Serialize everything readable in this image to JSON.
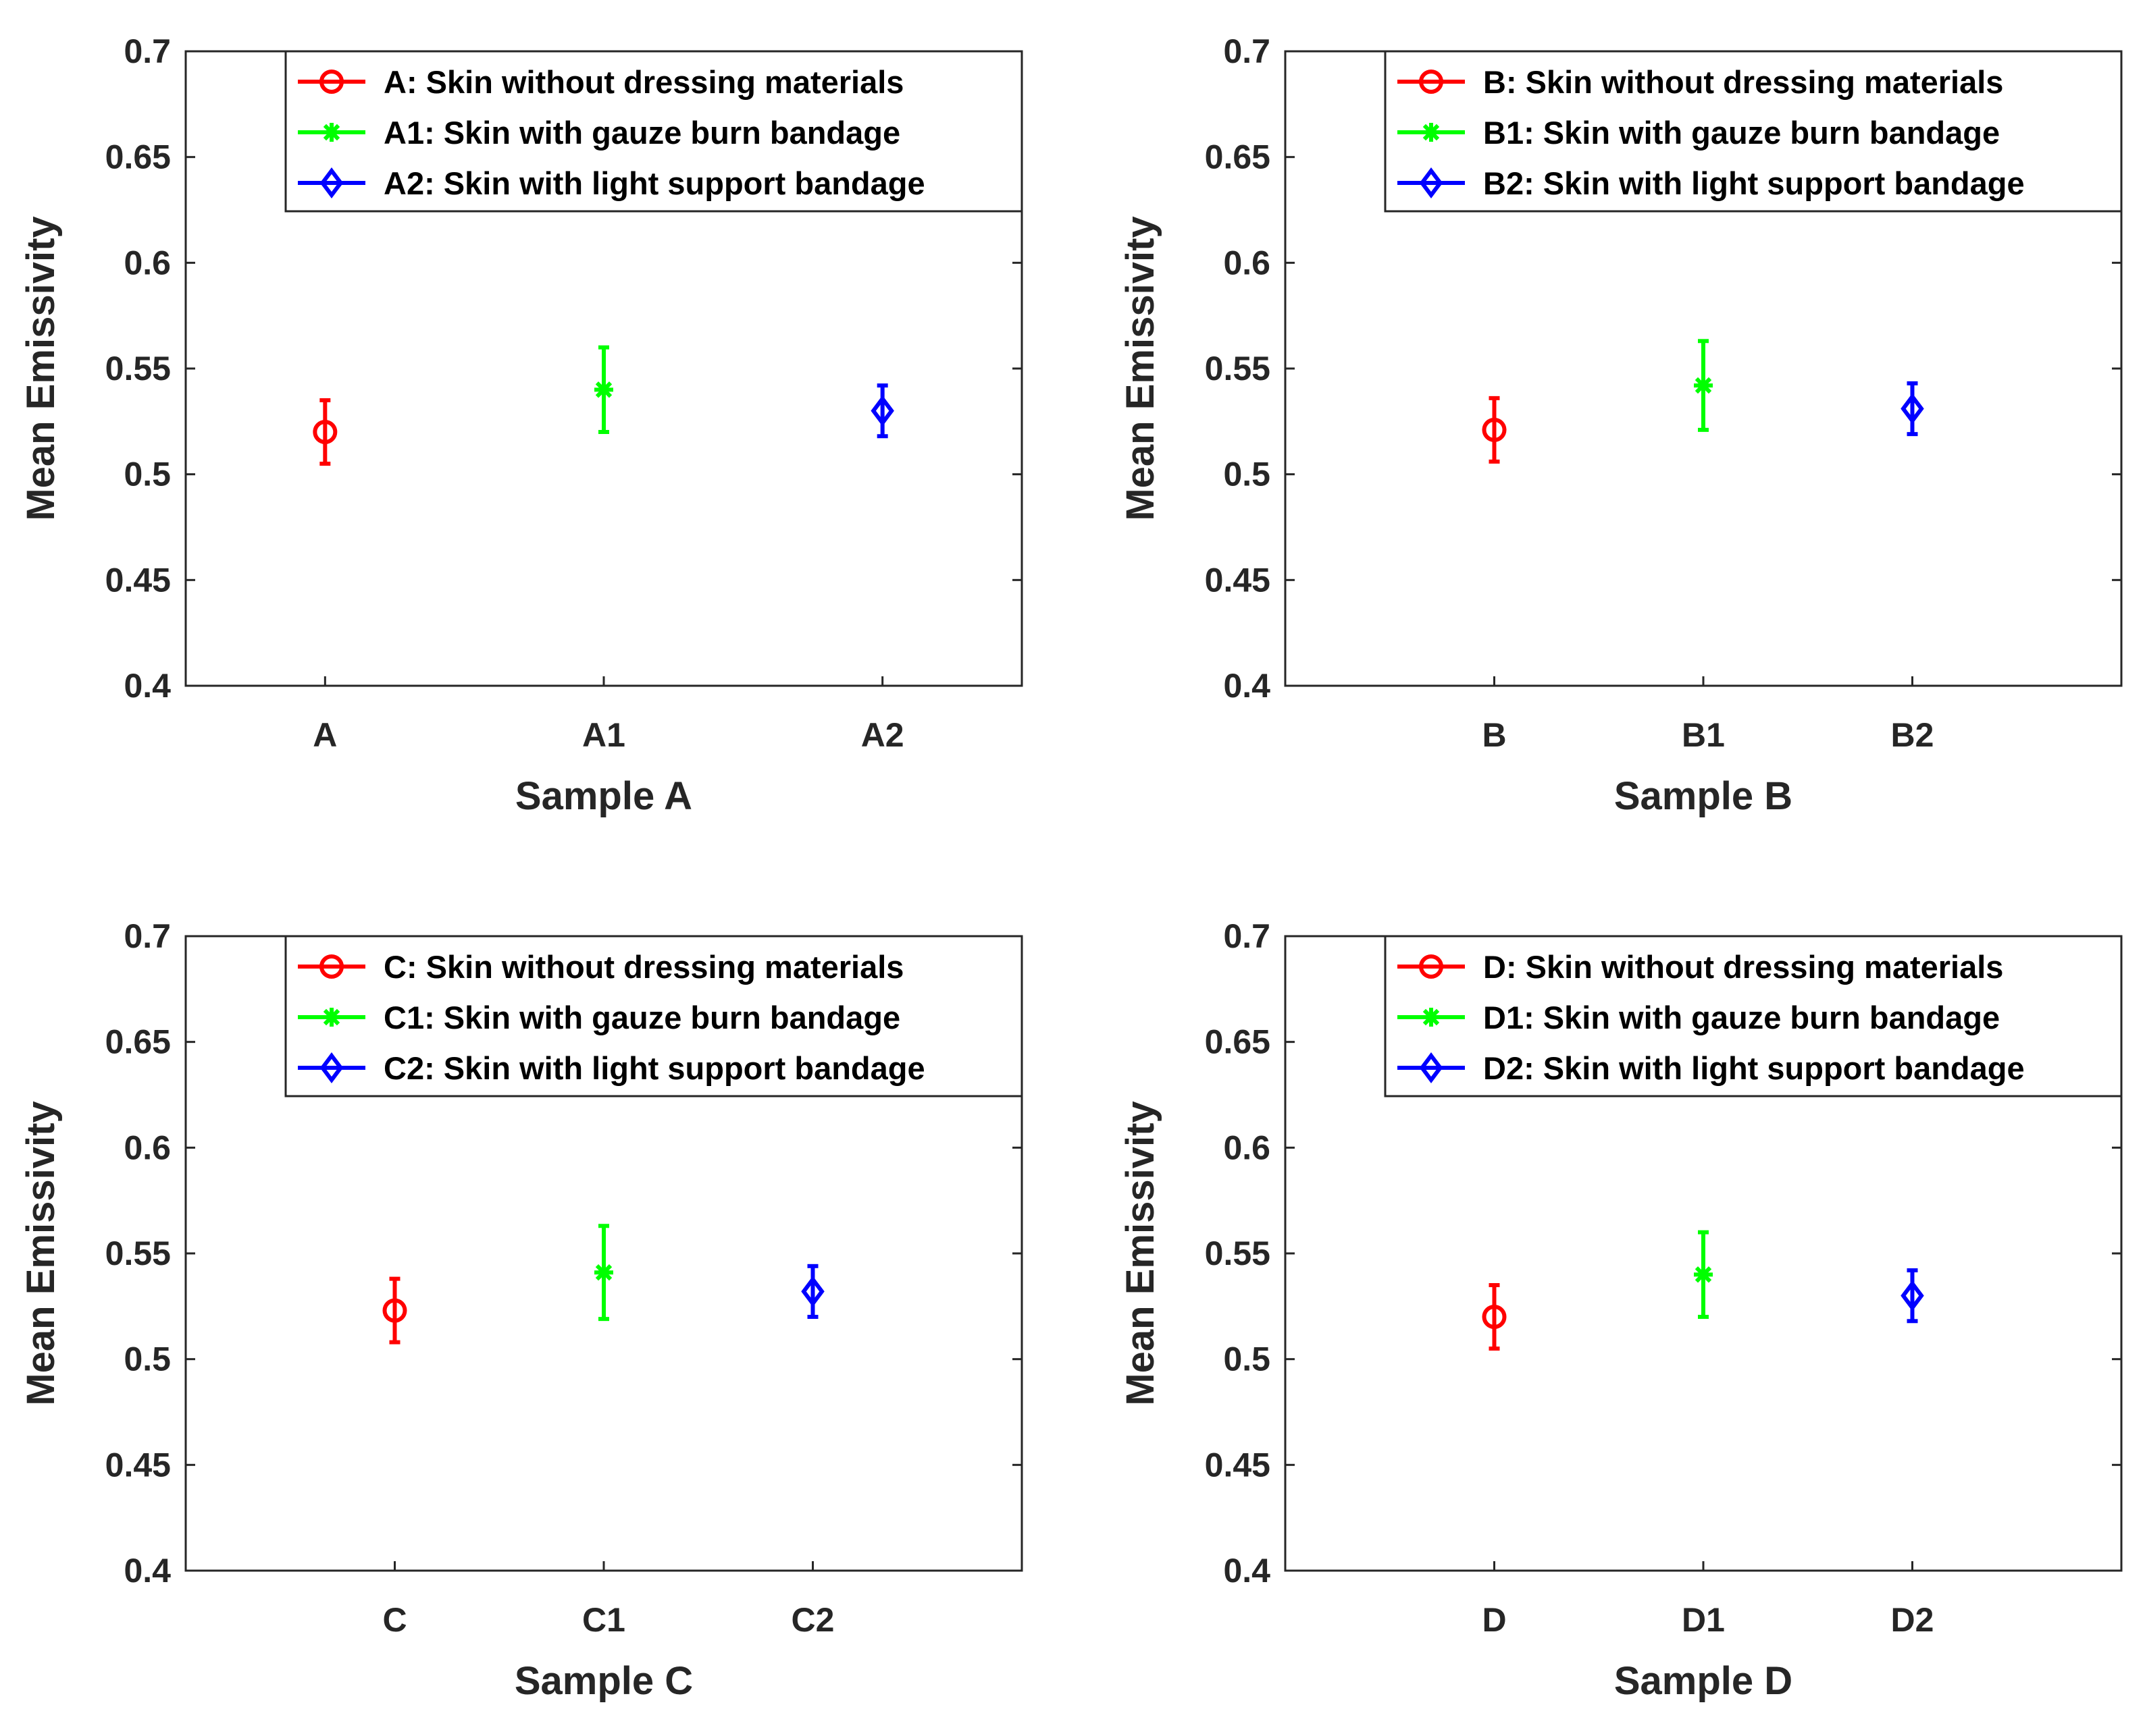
{
  "chart_data": [
    {
      "type": "errorbar",
      "xlabel": "Sample A",
      "ylabel": "Mean Emissivity",
      "ylim": [
        0.4,
        0.7
      ],
      "yticks": [
        0.4,
        0.45,
        0.5,
        0.55,
        0.6,
        0.65,
        0.7
      ],
      "ytick_labels": [
        "0.4",
        "0.45",
        "0.5",
        "0.55",
        "0.6",
        "0.65",
        "0.7"
      ],
      "xlim": [
        0,
        6
      ],
      "grid": false,
      "legend_position": "top-right",
      "points": [
        {
          "category": "A",
          "x": 1,
          "mean": 0.52,
          "lower": 0.505,
          "upper": 0.535,
          "marker": "circle",
          "color": "#ff0000",
          "legend": "A: Skin without dressing materials"
        },
        {
          "category": "A1",
          "x": 3,
          "mean": 0.54,
          "lower": 0.52,
          "upper": 0.56,
          "marker": "asterisk",
          "color": "#00ff00",
          "legend": "A1: Skin with gauze burn bandage"
        },
        {
          "category": "A2",
          "x": 5,
          "mean": 0.53,
          "lower": 0.518,
          "upper": 0.542,
          "marker": "diamond",
          "color": "#0000ff",
          "legend": "A2: Skin with light support bandage"
        }
      ]
    },
    {
      "type": "errorbar",
      "xlabel": "Sample B",
      "ylabel": "Mean Emissivity",
      "ylim": [
        0.4,
        0.7
      ],
      "yticks": [
        0.4,
        0.45,
        0.5,
        0.55,
        0.6,
        0.65,
        0.7
      ],
      "ytick_labels": [
        "0.4",
        "0.45",
        "0.5",
        "0.55",
        "0.6",
        "0.65",
        "0.7"
      ],
      "xlim": [
        0,
        4
      ],
      "grid": false,
      "legend_position": "top-right",
      "points": [
        {
          "category": "B",
          "x": 1,
          "mean": 0.521,
          "lower": 0.506,
          "upper": 0.536,
          "marker": "circle",
          "color": "#ff0000",
          "legend": "B: Skin without dressing materials"
        },
        {
          "category": "B1",
          "x": 2,
          "mean": 0.542,
          "lower": 0.521,
          "upper": 0.563,
          "marker": "asterisk",
          "color": "#00ff00",
          "legend": "B1: Skin with gauze burn bandage"
        },
        {
          "category": "B2",
          "x": 3,
          "mean": 0.531,
          "lower": 0.519,
          "upper": 0.543,
          "marker": "diamond",
          "color": "#0000ff",
          "legend": "B2: Skin with light support bandage"
        }
      ]
    },
    {
      "type": "errorbar",
      "xlabel": "Sample C",
      "ylabel": "Mean Emissivity",
      "ylim": [
        0.4,
        0.7
      ],
      "yticks": [
        0.4,
        0.45,
        0.5,
        0.55,
        0.6,
        0.65,
        0.7
      ],
      "ytick_labels": [
        "0.4",
        "0.45",
        "0.5",
        "0.55",
        "0.6",
        "0.65",
        "0.7"
      ],
      "xlim": [
        0,
        4
      ],
      "grid": false,
      "legend_position": "top-right",
      "points": [
        {
          "category": "C",
          "x": 1,
          "mean": 0.523,
          "lower": 0.508,
          "upper": 0.538,
          "marker": "circle",
          "color": "#ff0000",
          "legend": "C: Skin without dressing materials"
        },
        {
          "category": "C1",
          "x": 2,
          "mean": 0.541,
          "lower": 0.519,
          "upper": 0.563,
          "marker": "asterisk",
          "color": "#00ff00",
          "legend": "C1: Skin with gauze burn bandage"
        },
        {
          "category": "C2",
          "x": 3,
          "mean": 0.532,
          "lower": 0.52,
          "upper": 0.544,
          "marker": "diamond",
          "color": "#0000ff",
          "legend": "C2: Skin with light support bandage"
        }
      ]
    },
    {
      "type": "errorbar",
      "xlabel": "Sample D",
      "ylabel": "Mean Emissivity",
      "ylim": [
        0.4,
        0.7
      ],
      "yticks": [
        0.4,
        0.45,
        0.5,
        0.55,
        0.6,
        0.65,
        0.7
      ],
      "ytick_labels": [
        "0.4",
        "0.45",
        "0.5",
        "0.55",
        "0.6",
        "0.65",
        "0.7"
      ],
      "xlim": [
        0,
        4
      ],
      "grid": false,
      "legend_position": "top-right",
      "points": [
        {
          "category": "D",
          "x": 1,
          "mean": 0.52,
          "lower": 0.505,
          "upper": 0.535,
          "marker": "circle",
          "color": "#ff0000",
          "legend": "D: Skin without dressing materials"
        },
        {
          "category": "D1",
          "x": 2,
          "mean": 0.54,
          "lower": 0.52,
          "upper": 0.56,
          "marker": "asterisk",
          "color": "#00ff00",
          "legend": "D1: Skin with gauze burn bandage"
        },
        {
          "category": "D2",
          "x": 3,
          "mean": 0.53,
          "lower": 0.518,
          "upper": 0.542,
          "marker": "diamond",
          "color": "#0000ff",
          "legend": "D2: Skin with light support bandage"
        }
      ]
    }
  ]
}
